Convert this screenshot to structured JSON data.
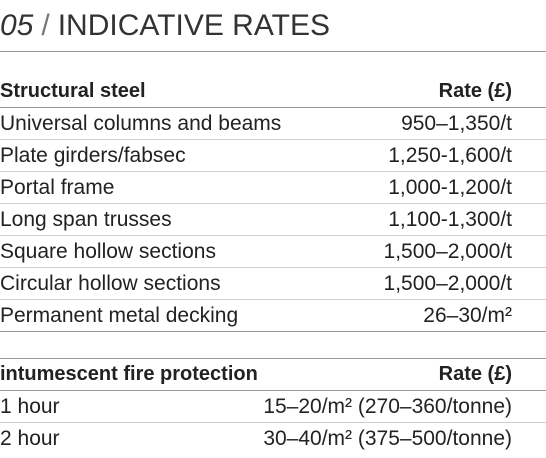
{
  "header": {
    "number": "05",
    "separator": "/",
    "title": "INDICATIVE RATES"
  },
  "tables": [
    {
      "header": [
        "Structural steel",
        "Rate (£)"
      ],
      "rows": [
        [
          "Universal columns and beams",
          "950–1,350/t"
        ],
        [
          "Plate girders/fabsec",
          "1,250-1,600/t"
        ],
        [
          "Portal frame",
          "1,000-1,200/t"
        ],
        [
          "Long span trusses",
          "1,100-1,300/t"
        ],
        [
          "Square hollow sections",
          "1,500–2,000/t"
        ],
        [
          "Circular hollow sections",
          "1,500–2,000/t"
        ],
        [
          "Permanent metal decking",
          "26–30/m²"
        ]
      ]
    },
    {
      "header": [
        "intumescent fire protection",
        "Rate (£)"
      ],
      "rows": [
        [
          "1 hour",
          "15–20/m² (270–360/tonne)"
        ],
        [
          "2 hour",
          "30–40/m² (375–500/tonne)"
        ]
      ]
    }
  ]
}
